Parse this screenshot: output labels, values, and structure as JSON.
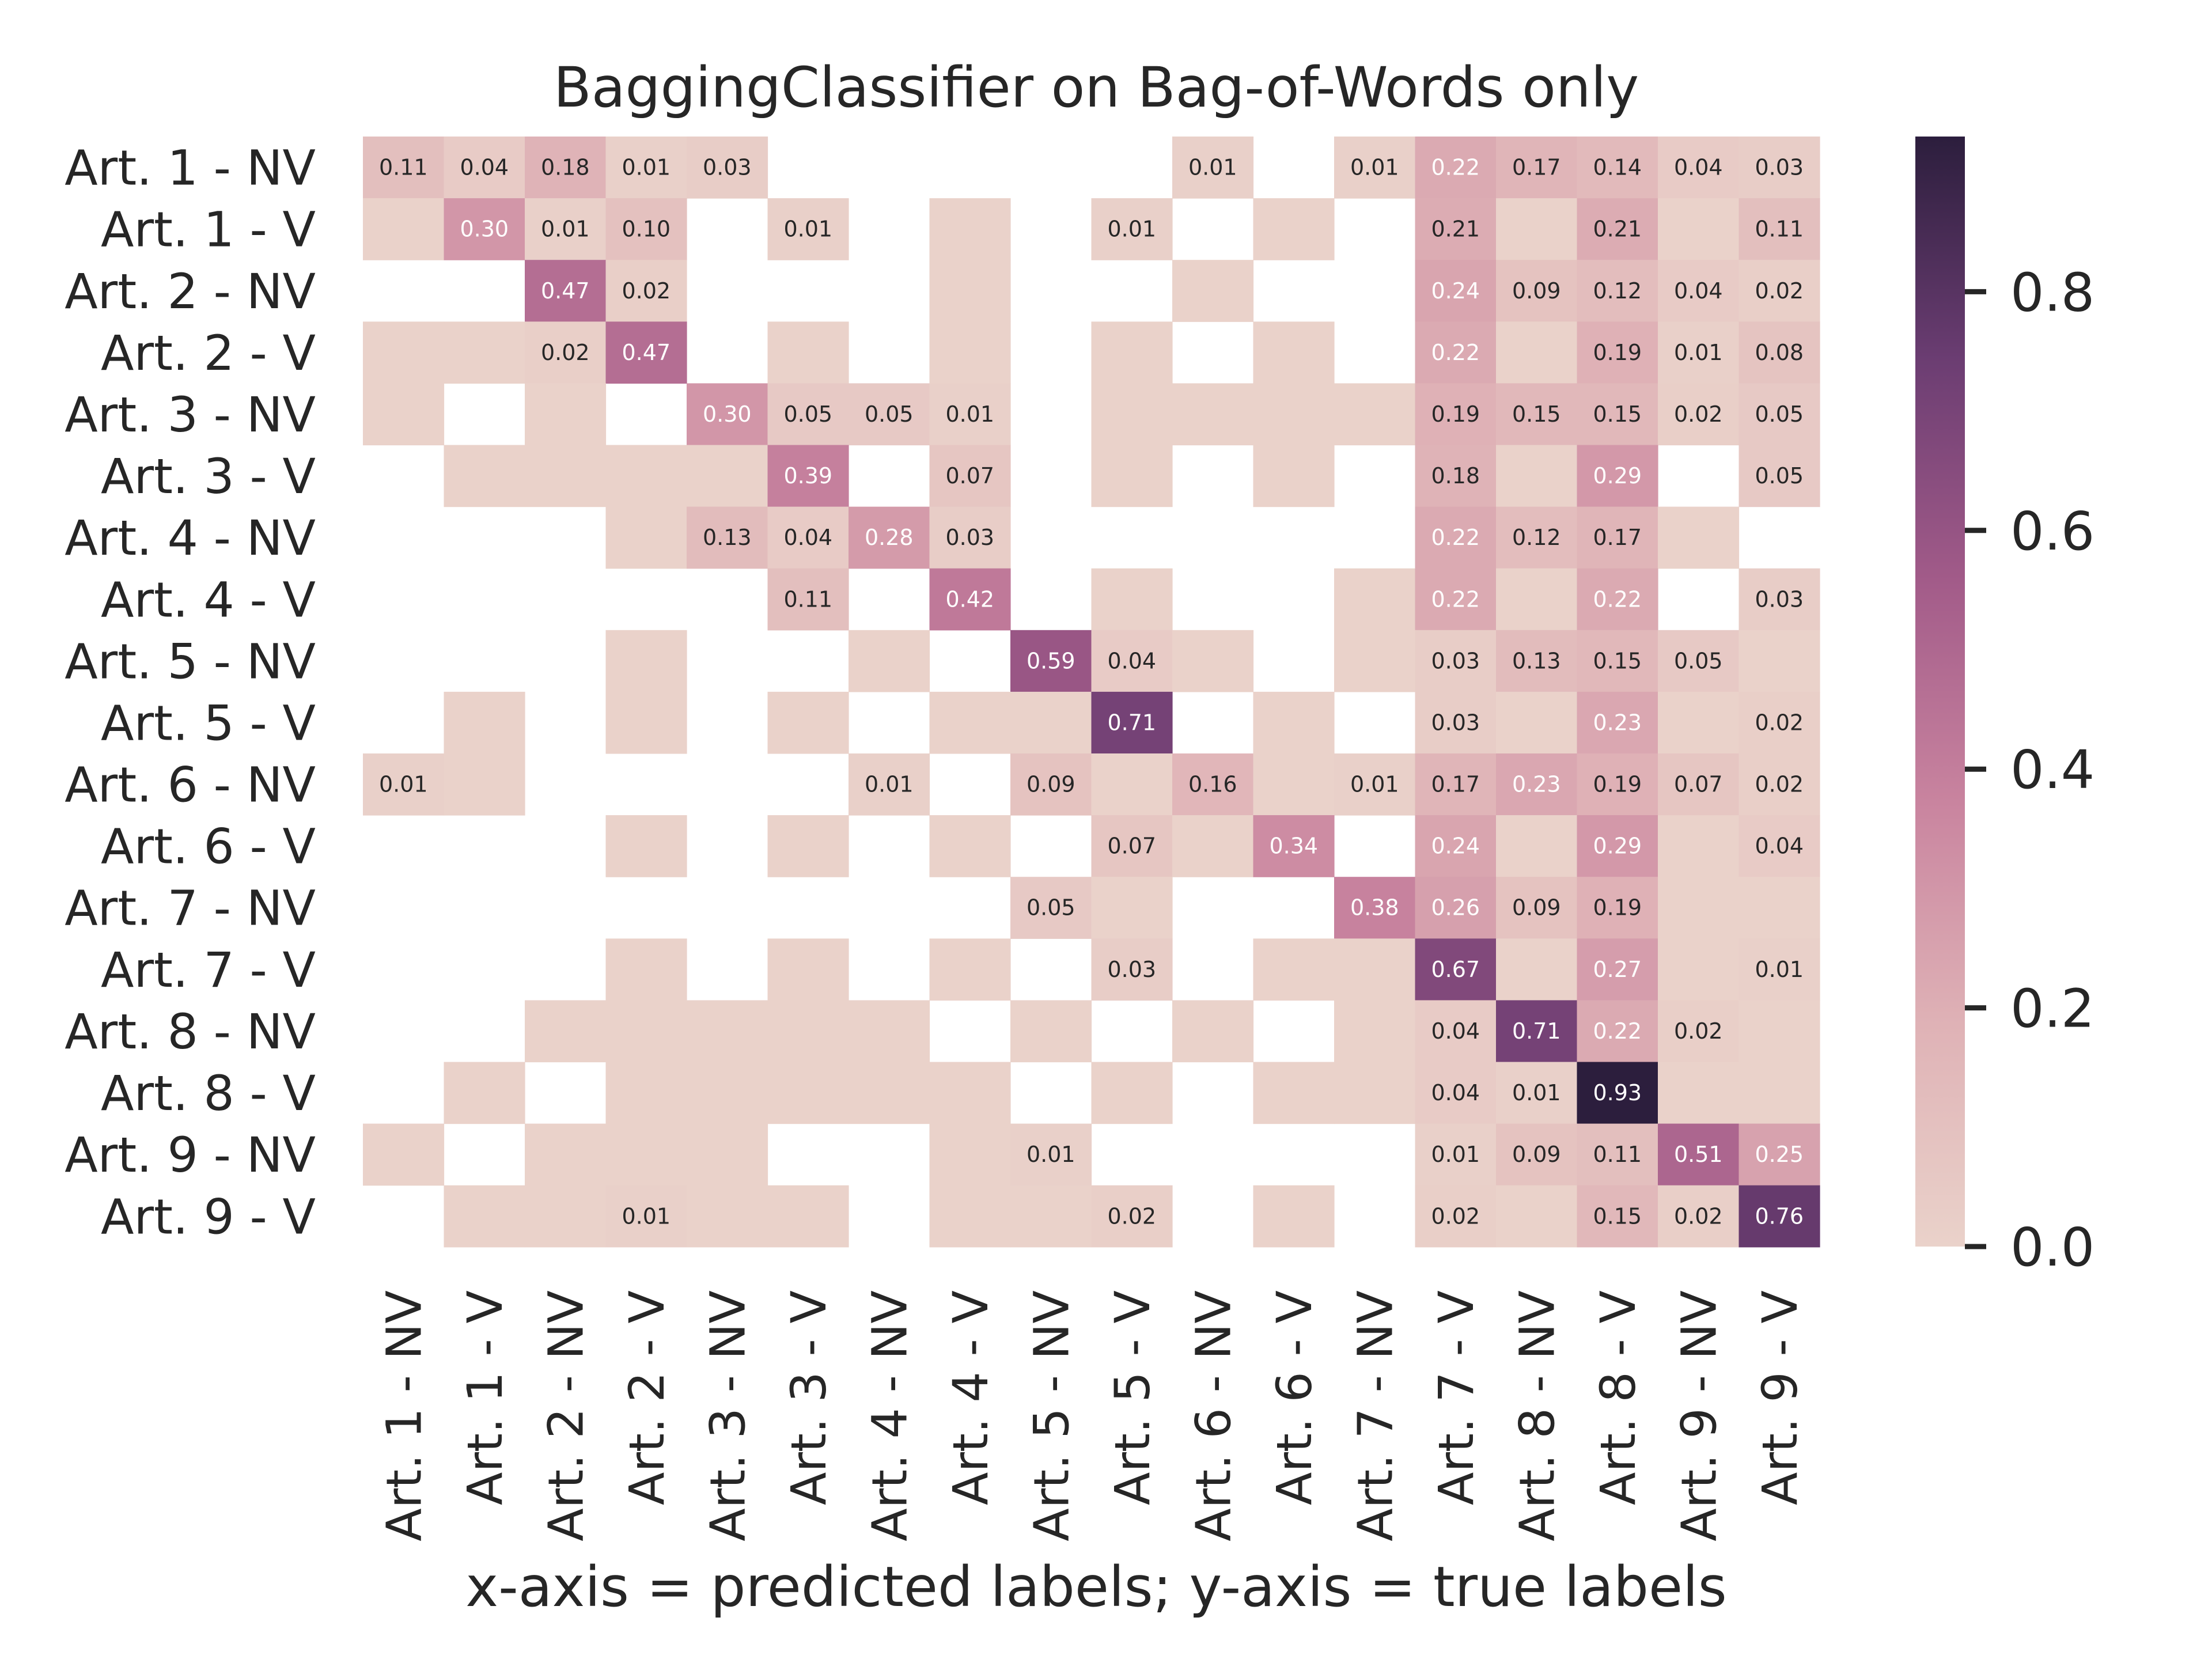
{
  "chart_data": {
    "type": "heatmap",
    "title": "BaggingClassifier on Bag-of-Words only",
    "xlabel": "x-axis = predicted labels; y-axis = true labels",
    "ylabel": "",
    "x_categories": [
      "Art. 1 - NV",
      "Art. 1 - V",
      "Art. 2 - NV",
      "Art. 2 - V",
      "Art. 3 - NV",
      "Art. 3 - V",
      "Art. 4 - NV",
      "Art. 4 - V",
      "Art. 5 - NV",
      "Art. 5 - V",
      "Art. 6 - NV",
      "Art. 6 - V",
      "Art. 7 - NV",
      "Art. 7 - V",
      "Art. 8 - NV",
      "Art. 8 - V",
      "Art. 9 - NV",
      "Art. 9 - V"
    ],
    "y_categories": [
      "Art. 1 - NV",
      "Art. 1 - V",
      "Art. 2 - NV",
      "Art. 2 - V",
      "Art. 3 - NV",
      "Art. 3 - V",
      "Art. 4 - NV",
      "Art. 4 - V",
      "Art. 5 - NV",
      "Art. 5 - V",
      "Art. 6 - NV",
      "Art. 6 - V",
      "Art. 7 - NV",
      "Art. 7 - V",
      "Art. 8 - NV",
      "Art. 8 - V",
      "Art. 9 - NV",
      "Art. 9 - V"
    ],
    "values": [
      [
        0.11,
        0.04,
        0.18,
        0.01,
        0.03,
        null,
        null,
        null,
        null,
        null,
        0.01,
        null,
        0.01,
        0.22,
        0.17,
        0.14,
        0.04,
        0.03
      ],
      [
        0,
        0.3,
        0.01,
        0.1,
        null,
        0.01,
        null,
        0,
        null,
        0.01,
        null,
        0,
        null,
        0.21,
        0,
        0.21,
        0,
        0.11
      ],
      [
        null,
        null,
        0.47,
        0.02,
        null,
        null,
        null,
        0,
        null,
        null,
        0,
        null,
        null,
        0.24,
        0.09,
        0.12,
        0.04,
        0.02
      ],
      [
        0,
        0,
        0.02,
        0.47,
        null,
        0,
        null,
        0,
        null,
        0,
        null,
        0,
        null,
        0.22,
        0,
        0.19,
        0.01,
        0.08
      ],
      [
        0,
        null,
        0,
        null,
        0.3,
        0.05,
        0.05,
        0.01,
        null,
        0,
        0,
        0,
        0,
        0.19,
        0.15,
        0.15,
        0.02,
        0.05
      ],
      [
        null,
        0,
        0,
        0,
        0,
        0.39,
        null,
        0.07,
        null,
        0,
        null,
        0,
        null,
        0.18,
        0,
        0.29,
        null,
        0.05
      ],
      [
        null,
        null,
        null,
        0,
        0.13,
        0.04,
        0.28,
        0.03,
        null,
        null,
        null,
        null,
        null,
        0.22,
        0.12,
        0.17,
        0,
        null
      ],
      [
        null,
        null,
        null,
        null,
        null,
        0.11,
        null,
        0.42,
        null,
        0,
        null,
        null,
        0,
        0.22,
        0,
        0.22,
        null,
        0.03
      ],
      [
        null,
        null,
        null,
        0,
        null,
        null,
        0,
        null,
        0.59,
        0.04,
        0,
        null,
        0,
        0.03,
        0.13,
        0.15,
        0.05,
        0
      ],
      [
        null,
        0,
        null,
        0,
        null,
        0,
        null,
        0,
        0,
        0.71,
        null,
        0,
        null,
        0.03,
        0,
        0.23,
        0,
        0.02
      ],
      [
        0.01,
        0,
        null,
        null,
        null,
        null,
        0.01,
        null,
        0.09,
        0,
        0.16,
        0,
        0.01,
        0.17,
        0.23,
        0.19,
        0.07,
        0.02
      ],
      [
        null,
        null,
        null,
        0,
        null,
        0,
        null,
        0,
        null,
        0.07,
        0,
        0.34,
        null,
        0.24,
        0,
        0.29,
        0,
        0.04
      ],
      [
        null,
        null,
        null,
        null,
        null,
        null,
        null,
        null,
        0.05,
        0,
        null,
        null,
        0.38,
        0.26,
        0.09,
        0.19,
        0,
        0
      ],
      [
        null,
        null,
        null,
        0,
        null,
        0,
        null,
        0,
        null,
        0.03,
        null,
        0,
        0,
        0.67,
        0,
        0.27,
        0,
        0.01
      ],
      [
        null,
        null,
        0,
        0,
        0,
        0,
        0,
        null,
        0,
        null,
        0,
        null,
        0,
        0.04,
        0.71,
        0.22,
        0.02,
        0
      ],
      [
        null,
        0,
        null,
        0,
        0,
        0,
        0,
        0,
        null,
        0,
        null,
        0,
        0,
        0.04,
        0.01,
        0.93,
        0,
        0
      ],
      [
        0,
        null,
        0,
        0,
        0,
        null,
        null,
        0,
        0.01,
        null,
        null,
        null,
        null,
        0.01,
        0.09,
        0.11,
        0.51,
        0.25
      ],
      [
        null,
        0,
        0,
        0.01,
        0,
        0,
        null,
        0,
        0,
        0.02,
        null,
        0,
        null,
        0.02,
        0,
        0.15,
        0.02,
        0.76
      ]
    ],
    "colorbar": {
      "ticks": [
        "0.0",
        "0.2",
        "0.4",
        "0.6",
        "0.8"
      ],
      "range": [
        0,
        0.93
      ]
    },
    "colors": {
      "low": "#ead2ca",
      "mid": "#c27c9b",
      "high": "#2c1e3d",
      "text_dark": "#262626",
      "text_light": "#ffffff"
    },
    "grid": false,
    "legend": "colorbar-right"
  }
}
